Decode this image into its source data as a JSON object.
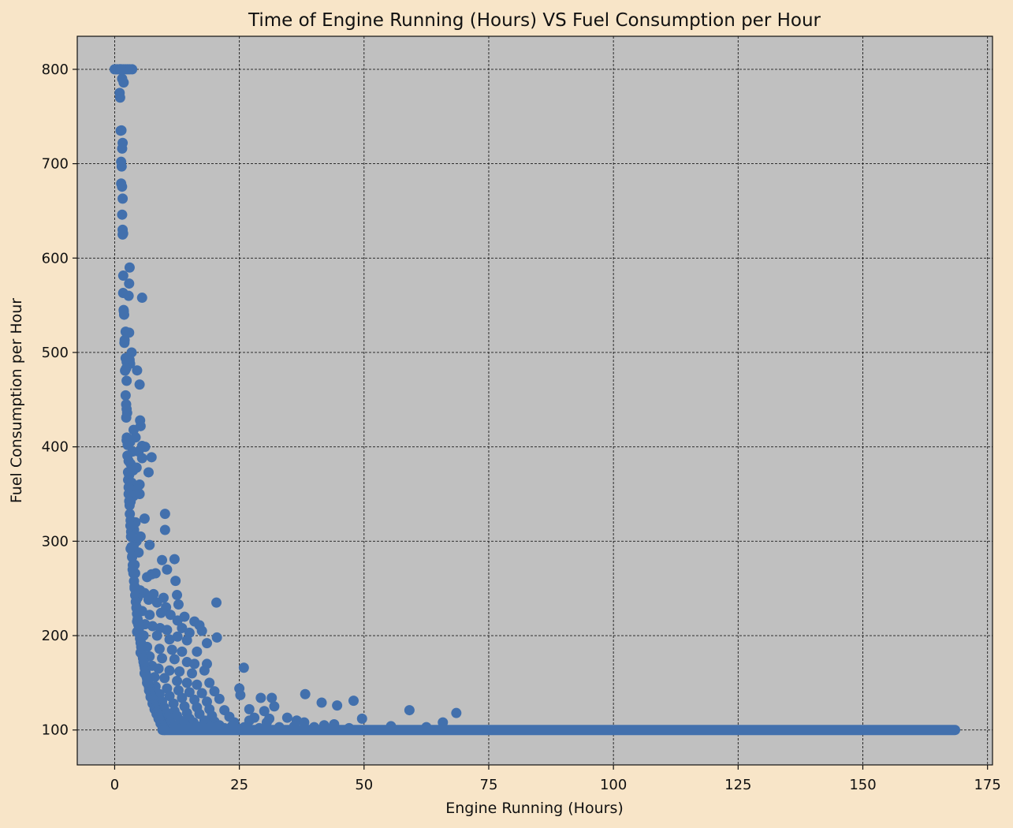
{
  "chart_data": {
    "type": "scatter",
    "title": "Time of Engine Running (Hours) VS Fuel Consumption per Hour",
    "xlabel": "Engine Running (Hours)",
    "ylabel": "Fuel Consumption per Hour",
    "xlim": [
      -7.5,
      176
    ],
    "ylim": [
      63,
      835
    ],
    "xticks": [
      0,
      25,
      50,
      75,
      100,
      125,
      150,
      175
    ],
    "yticks": [
      100,
      200,
      300,
      400,
      500,
      600,
      700,
      800
    ],
    "grid": true,
    "grid_style": "dashed",
    "legend": "none",
    "colors": {
      "background": "#f8e5c8",
      "plot_area": "#c0c0c0",
      "marker": "#4270ad",
      "grid": "#1a1a1a"
    },
    "series": [
      {
        "points": [
          [
            0,
            800
          ],
          [
            0.3,
            800
          ],
          [
            0.6,
            800
          ],
          [
            1,
            800
          ],
          [
            1.4,
            800
          ],
          [
            1.8,
            800
          ],
          [
            2.2,
            800
          ],
          [
            2.6,
            800
          ],
          [
            3,
            800
          ],
          [
            3.5,
            800
          ],
          [
            1,
            775
          ],
          [
            1.1,
            770
          ],
          [
            1.5,
            790
          ],
          [
            1.8,
            786
          ],
          [
            1.2,
            735
          ],
          [
            1.6,
            722
          ],
          [
            1.5,
            716
          ],
          [
            1.3,
            702
          ],
          [
            1.4,
            697
          ],
          [
            1.3,
            679
          ],
          [
            1.6,
            663
          ],
          [
            1.5,
            646
          ],
          [
            1.6,
            630
          ],
          [
            1.7,
            626
          ],
          [
            3,
            590
          ],
          [
            2.9,
            573
          ],
          [
            1.7,
            563
          ],
          [
            2.8,
            560
          ],
          [
            5.5,
            558
          ],
          [
            1.8,
            545
          ],
          [
            1.9,
            540
          ],
          [
            2.2,
            522
          ],
          [
            2.9,
            521
          ],
          [
            2,
            513
          ],
          [
            3.4,
            500
          ],
          [
            2.2,
            494
          ],
          [
            2.4,
            490
          ],
          [
            3,
            492
          ],
          [
            3.1,
            488
          ],
          [
            4.5,
            481
          ],
          [
            2.3,
            483
          ],
          [
            2.4,
            470
          ],
          [
            5,
            466
          ],
          [
            2.3,
            445
          ],
          [
            2.4,
            440
          ],
          [
            2.5,
            436
          ],
          [
            5.1,
            428
          ],
          [
            5.2,
            422
          ],
          [
            3.8,
            418
          ],
          [
            4.2,
            410
          ],
          [
            2.4,
            407
          ],
          [
            3.1,
            405
          ],
          [
            2.6,
            402
          ],
          [
            5.5,
            401
          ],
          [
            4.8,
            395
          ],
          [
            6.1,
            400
          ],
          [
            3.6,
            395
          ],
          [
            5.5,
            388
          ],
          [
            7.4,
            389
          ],
          [
            2.8,
            385
          ],
          [
            3.2,
            382
          ],
          [
            4.4,
            378
          ],
          [
            3.7,
            375
          ],
          [
            2.9,
            370
          ],
          [
            6.8,
            373
          ],
          [
            2.7,
            365
          ],
          [
            3.4,
            362
          ],
          [
            5,
            360
          ],
          [
            4.5,
            355
          ],
          [
            2.8,
            350
          ],
          [
            3.8,
            348
          ],
          [
            3.2,
            342
          ],
          [
            5,
            350
          ],
          [
            3,
            338
          ],
          [
            10.1,
            329
          ],
          [
            6,
            324
          ],
          [
            3.2,
            322
          ],
          [
            4.2,
            320
          ],
          [
            10.1,
            312
          ],
          [
            3.3,
            310
          ],
          [
            3.9,
            312
          ],
          [
            5.2,
            305
          ],
          [
            4.4,
            300
          ],
          [
            3.8,
            295
          ],
          [
            7,
            296
          ],
          [
            3.2,
            292
          ],
          [
            4.8,
            288
          ],
          [
            3.5,
            283
          ],
          [
            9.5,
            280
          ],
          [
            12,
            281
          ],
          [
            4,
            275
          ],
          [
            3.6,
            270
          ],
          [
            10.5,
            270
          ],
          [
            4.1,
            266
          ],
          [
            7.4,
            265
          ],
          [
            8.2,
            266
          ],
          [
            6.5,
            262
          ],
          [
            12.2,
            258
          ],
          [
            4,
            252
          ],
          [
            5.1,
            248
          ],
          [
            6,
            245
          ],
          [
            7.8,
            244
          ],
          [
            9.8,
            240
          ],
          [
            12.5,
            243
          ],
          [
            20.4,
            235
          ],
          [
            4.6,
            240
          ],
          [
            6.8,
            238
          ],
          [
            8.5,
            235
          ],
          [
            10.3,
            230
          ],
          [
            12.8,
            233
          ],
          [
            4.4,
            230
          ],
          [
            5.5,
            226
          ],
          [
            7,
            222
          ],
          [
            9.3,
            224
          ],
          [
            11.2,
            222
          ],
          [
            14,
            220
          ],
          [
            16,
            215
          ],
          [
            12.6,
            216
          ],
          [
            17,
            211
          ],
          [
            4.5,
            215
          ],
          [
            6.1,
            212
          ],
          [
            7.6,
            210
          ],
          [
            9.1,
            208
          ],
          [
            10.5,
            206
          ],
          [
            13.5,
            208
          ],
          [
            15,
            203
          ],
          [
            17.5,
            205
          ],
          [
            4.5,
            204
          ],
          [
            5.8,
            200
          ],
          [
            8.5,
            200
          ],
          [
            11,
            196
          ],
          [
            12.6,
            199
          ],
          [
            14.5,
            195
          ],
          [
            18.5,
            192
          ],
          [
            20.5,
            198
          ],
          [
            5.3,
            192
          ],
          [
            6.5,
            188
          ],
          [
            9,
            186
          ],
          [
            11.5,
            185
          ],
          [
            13.5,
            183
          ],
          [
            16.5,
            183
          ],
          [
            5.2,
            182
          ],
          [
            7,
            178
          ],
          [
            9.5,
            176
          ],
          [
            12,
            175
          ],
          [
            14.5,
            172
          ],
          [
            16,
            170
          ],
          [
            18.5,
            170
          ],
          [
            5.8,
            172
          ],
          [
            7.5,
            168
          ],
          [
            8.8,
            165
          ],
          [
            11,
            163
          ],
          [
            13,
            162
          ],
          [
            15.5,
            160
          ],
          [
            18,
            163
          ],
          [
            25.9,
            166
          ],
          [
            6.2,
            160
          ],
          [
            8,
            156
          ],
          [
            10,
            155
          ],
          [
            12.5,
            152
          ],
          [
            14.5,
            150
          ],
          [
            16.5,
            148
          ],
          [
            19,
            150
          ],
          [
            6.6,
            150
          ],
          [
            8.2,
            146
          ],
          [
            10.5,
            144
          ],
          [
            12.8,
            142
          ],
          [
            15,
            140
          ],
          [
            17.5,
            139
          ],
          [
            20,
            141
          ],
          [
            25,
            144
          ],
          [
            6.9,
            142
          ],
          [
            9,
            138
          ],
          [
            11,
            136
          ],
          [
            13.5,
            134
          ],
          [
            16,
            132
          ],
          [
            18.5,
            130
          ],
          [
            21,
            133
          ],
          [
            25.2,
            137
          ],
          [
            29.3,
            134
          ],
          [
            31.5,
            134
          ],
          [
            38.2,
            138
          ],
          [
            41.5,
            129
          ],
          [
            44.6,
            126
          ],
          [
            47.9,
            131
          ],
          [
            7.2,
            135
          ],
          [
            9.5,
            130
          ],
          [
            11.8,
            128
          ],
          [
            14,
            125
          ],
          [
            16.5,
            124
          ],
          [
            19,
            122
          ],
          [
            22,
            121
          ],
          [
            27,
            122
          ],
          [
            30,
            120
          ],
          [
            32,
            125
          ],
          [
            59.1,
            121
          ],
          [
            68.5,
            118
          ],
          [
            7.6,
            128
          ],
          [
            9.9,
            124
          ],
          [
            12,
            120
          ],
          [
            14.5,
            118
          ],
          [
            17,
            117
          ],
          [
            19.5,
            115
          ],
          [
            23,
            114
          ],
          [
            28,
            113
          ],
          [
            31,
            112
          ],
          [
            34.6,
            113
          ],
          [
            36.5,
            110
          ],
          [
            49.6,
            112
          ],
          [
            8,
            122
          ],
          [
            10.5,
            118
          ],
          [
            12.5,
            115
          ],
          [
            15,
            112
          ],
          [
            18,
            110
          ],
          [
            20,
            109
          ],
          [
            24,
            108
          ],
          [
            27,
            110
          ],
          [
            30.5,
            108
          ],
          [
            38,
            108
          ],
          [
            42,
            105
          ],
          [
            44,
            106
          ],
          [
            55.4,
            104
          ],
          [
            62.5,
            103
          ],
          [
            65.8,
            108
          ],
          [
            8.4,
            117
          ],
          [
            10.8,
            113
          ],
          [
            13.2,
            110
          ],
          [
            15.8,
            108
          ],
          [
            18.5,
            106
          ],
          [
            21,
            105
          ],
          [
            23.5,
            104
          ],
          [
            26,
            103
          ],
          [
            29,
            102
          ],
          [
            33,
            103
          ],
          [
            36,
            104
          ],
          [
            40,
            103
          ],
          [
            47,
            102
          ],
          [
            8.8,
            112
          ],
          [
            11.2,
            108
          ],
          [
            14,
            106
          ],
          [
            16.5,
            104
          ],
          [
            19.2,
            103
          ],
          [
            22,
            102
          ],
          [
            25,
            101
          ],
          [
            9.2,
            107
          ],
          [
            12,
            104
          ],
          [
            15,
            102
          ],
          [
            9.6,
            103
          ],
          [
            13,
            101
          ],
          [
            6,
            160
          ],
          [
            7.3,
            140
          ],
          [
            8.3,
            125
          ],
          [
            9.5,
            110
          ],
          [
            5.5,
            180
          ],
          [
            6.5,
            150
          ],
          [
            7.8,
            132
          ],
          [
            9.1,
            115
          ]
        ]
      },
      {
        "baseline": {
          "y": 100,
          "x_from": 9.6,
          "x_to": 168.5
        }
      }
    ]
  }
}
